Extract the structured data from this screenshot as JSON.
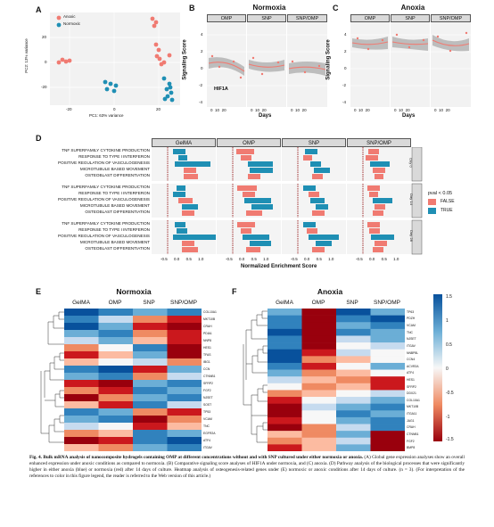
{
  "panel_letters": {
    "A": "A",
    "B": "B",
    "C": "C",
    "D": "D",
    "E": "E",
    "F": "F"
  },
  "panelA": {
    "legend": [
      "Anoxic",
      "Normoxic"
    ],
    "ylabel": "PC2: 13% variance",
    "xlabel": "PC1: 63% variance",
    "yticks": [
      "20",
      "0",
      "-20"
    ],
    "xticks": [
      "-20",
      "0",
      "20"
    ],
    "colors": {
      "anoxic": "#f07b72",
      "normoxic": "#1f8fb4"
    }
  },
  "panelB": {
    "title": "Normoxia",
    "facets": [
      "OMP",
      "SNP",
      "SNP/OMP"
    ],
    "ylabel": "Signaling Score",
    "xlabel": "Days",
    "yticks": [
      "4",
      "2",
      "0",
      "-2",
      "-4"
    ],
    "xticks": [
      "0",
      "10",
      "20"
    ],
    "annotation": "HIF1A"
  },
  "panelC": {
    "title": "Anoxia",
    "facets": [
      "OMP",
      "SNP",
      "SNP/OMP"
    ],
    "ylabel": "Signaling Score",
    "xlabel": "Days",
    "yticks": [
      "4",
      "2",
      "0",
      "-2",
      "-4"
    ],
    "xticks": [
      "0",
      "10",
      "20"
    ]
  },
  "panelD": {
    "facets": [
      "GelMA",
      "OMP",
      "SNP",
      "SNP/OMP"
    ],
    "terms": [
      "TNF SUPERFAMILY CYTOKINE PRODUCTION",
      "RESPONSE TO TYPE I INTERFERON",
      "POSITIVE REGULATION OF VASCULOGENESIS",
      "MICROTUBULE BASED MOVEMENT",
      "OSTEOBLAST DIFFERENTIATION"
    ],
    "row_strips": [
      "Day 0",
      "Day 14",
      "Day 28"
    ],
    "xticks": [
      "-0.5",
      "0.0",
      "0.5",
      "1.0"
    ],
    "xlabel": "Normalized Enrichment Score",
    "legend_title": "pval < 0.05",
    "legend_items": [
      "FALSE",
      "TRUE"
    ],
    "colors": {
      "false": "#f07b72",
      "true": "#1f8fb4"
    }
  },
  "panelE": {
    "title": "Normoxia",
    "columns": [
      "GelMA",
      "OMP",
      "SNP",
      "SNP/OMP"
    ],
    "genes": [
      "COL10A1",
      "MKT10B",
      "CRAH",
      "PDIA1",
      "NNP8",
      "HES1",
      "TFAS",
      "IBG1",
      "CCN",
      "CTNNB1",
      "SFRP2",
      "FGF2",
      "NJSET",
      "SOST",
      "TP53",
      "VCAM",
      "TNC",
      "EGFR2A",
      "ATF4",
      "ITGAV"
    ]
  },
  "panelF": {
    "title": "Anoxia",
    "columns": [
      "GelMA",
      "OMP",
      "SNP",
      "SNP/OMP"
    ],
    "genes": [
      "TP63",
      "PDZH",
      "VCAM",
      "TNC",
      "NJSET",
      "ITGAV",
      "NNBP8L",
      "CCN4",
      "ACVR2A",
      "ATF4",
      "HES1",
      "SFRP2",
      "DDX21",
      "COL10A1",
      "MKT10B",
      "ITGA11",
      "JAG1",
      "CRAH",
      "CTNNB1",
      "FGF2",
      "BMP8"
    ]
  },
  "colorbar": {
    "ticks": [
      "1.5",
      "1",
      "0.5",
      "0",
      "-0.5",
      "-1",
      "-1.5"
    ]
  },
  "caption": {
    "lead": "Fig. 4. Bulk mRNA analysis of nanocomposite hydrogels containing OMP at different concentrations without and with SNP cultured under either normoxia or anoxia.",
    "body": " (A) Global gene expression analyses show an overall enhanced expression under anoxic conditions as compared to normoxia. (B) Comparative signaling score analyses of HIF1A under normoxia, and (C) anoxia. (D) Pathway analysis of the biological processes that were significantly higher in either anoxia (blue) or normoxia (red) after 14 days of culture. Heatmap analysis of osteogenesis-related genes under (E) normoxic or anoxic conditions after 14 days of culture. (n = 3). (For interpretation of the references to color in this figure legend, the reader is referred to the Web version of this article.)"
  }
}
